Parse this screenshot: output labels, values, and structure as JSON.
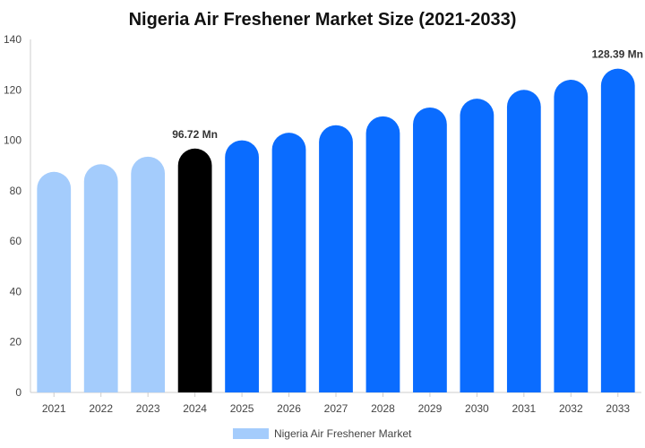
{
  "chart_data": {
    "type": "bar",
    "title": "Nigeria Air Freshener Market Size (2021-2033)",
    "xlabel": "",
    "ylabel": "",
    "categories": [
      "2021",
      "2022",
      "2023",
      "2024",
      "2025",
      "2026",
      "2027",
      "2028",
      "2029",
      "2030",
      "2031",
      "2032",
      "2033"
    ],
    "series": [
      {
        "name": "Nigeria Air Freshener Market",
        "values": [
          87.5,
          90.5,
          93.5,
          96.72,
          100,
          103,
          106,
          109.5,
          113,
          116.5,
          120,
          124,
          128.39
        ]
      }
    ],
    "ylim": [
      0,
      140
    ],
    "yticks": [
      0,
      20,
      40,
      60,
      80,
      100,
      120,
      140
    ],
    "grid": false,
    "legend_position": "bottom",
    "annotations": [
      {
        "category": "2024",
        "text": "96.72 Mn"
      },
      {
        "category": "2033",
        "text": "128.39 Mn"
      }
    ],
    "colors": {
      "historical": "#a4ccfc",
      "current": "#000000",
      "forecast": "#0a6cff",
      "axis": "#cccccc"
    },
    "highlight_category": "2024",
    "historical_categories": [
      "2021",
      "2022",
      "2023"
    ]
  }
}
